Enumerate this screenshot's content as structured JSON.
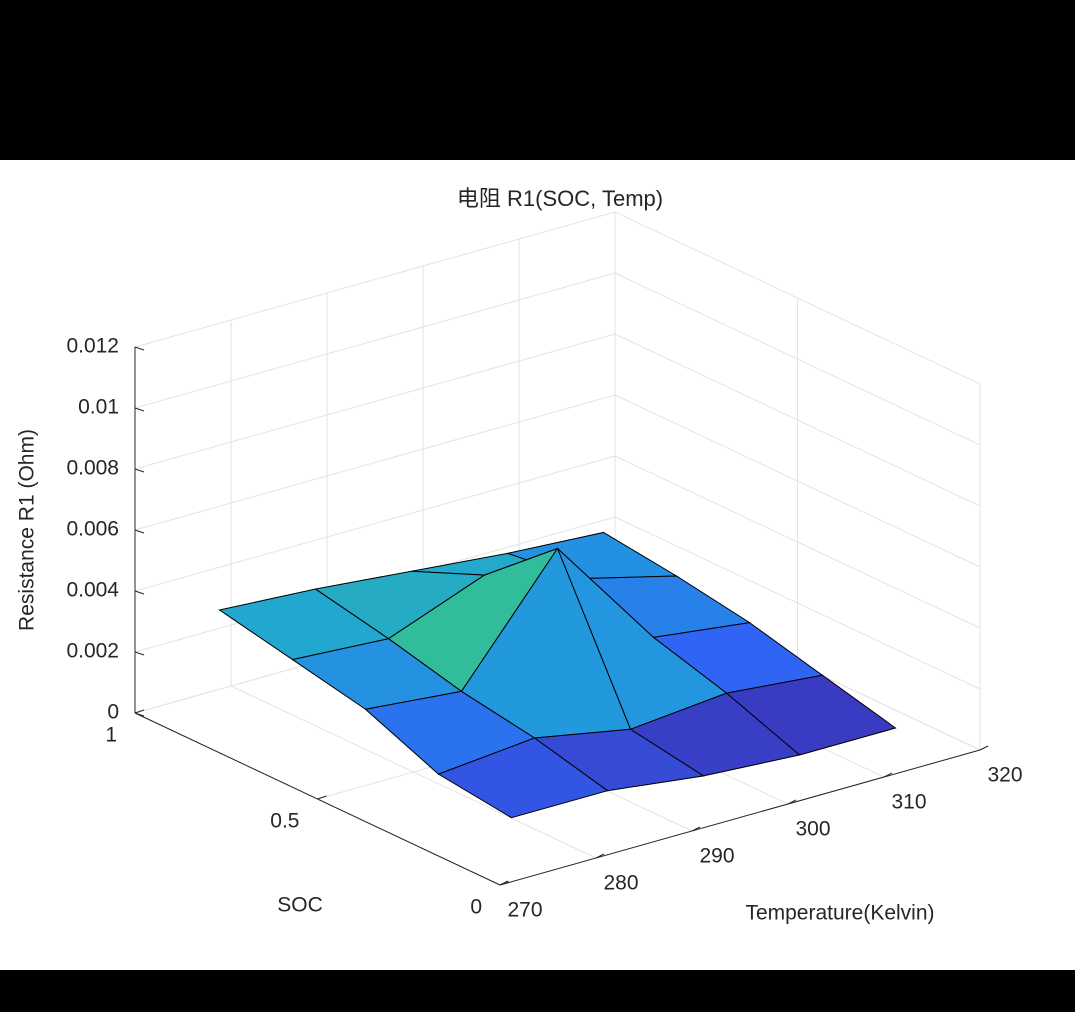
{
  "chart_data": {
    "type": "surface",
    "title": "电阻 R1(SOC, Temp)",
    "xlabel": "Temperature(Kelvin)",
    "ylabel": "SOC",
    "zlabel": "Resistance R1 (Ohm)",
    "x": [
      275,
      285,
      295,
      305,
      315
    ],
    "y": [
      0.1,
      0.3,
      0.5,
      0.7,
      0.9
    ],
    "z": [
      [
        0.0012,
        0.0012,
        0.0008,
        0.0006,
        0.0006
      ],
      [
        0.0015,
        0.0018,
        0.0012,
        0.0015,
        0.0012
      ],
      [
        0.0025,
        0.0022,
        0.006,
        0.0022,
        0.0018
      ],
      [
        0.003,
        0.0028,
        0.004,
        0.003,
        0.0022
      ],
      [
        0.0035,
        0.0033,
        0.003,
        0.0027,
        0.0025
      ]
    ],
    "xlim": [
      270,
      320
    ],
    "xticks": [
      270,
      280,
      290,
      300,
      310,
      320
    ],
    "ylim": [
      0,
      1
    ],
    "yticks": [
      0,
      0.5,
      1
    ],
    "zlim": [
      0,
      0.012
    ],
    "zticks": [
      0,
      0.002,
      0.004,
      0.006,
      0.008,
      0.01,
      0.012
    ],
    "grid": true,
    "colormap": "parula",
    "edgecolor": "#000000"
  }
}
